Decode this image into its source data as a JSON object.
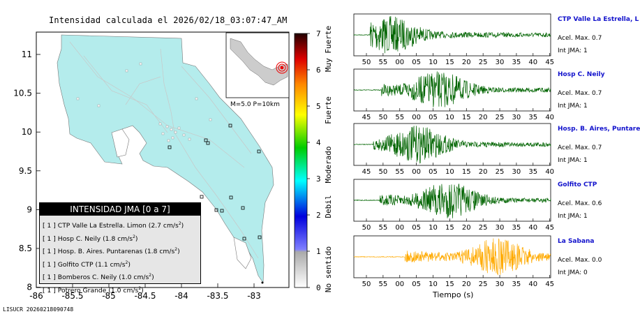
{
  "title": "Intensidad calculada el 2026/02/18_03:07:47_AM",
  "footer": "LISUCR 20260218090748",
  "map": {
    "x_ticks": [
      "-86",
      "-85.5",
      "-85",
      "-84.5",
      "-84",
      "-83.5",
      "-83"
    ],
    "y_ticks": [
      "11",
      "10.5",
      "10",
      "9.5",
      "9",
      "8.5",
      "8"
    ],
    "inset_label": "M=5.0 P=10km"
  },
  "colorbar": {
    "ticks": [
      "0",
      "1",
      "2",
      "3",
      "4",
      "5",
      "6",
      "7"
    ],
    "labels": [
      "No sentido",
      "Debil",
      "Moderado",
      "Fuerte",
      "Muy Fuerte"
    ]
  },
  "legend": {
    "title": "INTENSIDAD JMA [0 a 7]",
    "rows": [
      {
        "level": "[ 1 ]",
        "text": "CTP Valle La Estrella. Limon (2.7 cm/s",
        "sup": "2",
        ")": ")"
      },
      {
        "level": "[ 1 ]",
        "text": "Hosp C. Neily (1.8 cm/s",
        "sup": "2",
        ")": ")"
      },
      {
        "level": "[ 1 ]",
        "text": "Hosp. B. Aires. Puntarenas (1.8 cm/s",
        "sup": "2",
        ")": ")"
      },
      {
        "level": "[ 1 ]",
        "text": "Golfito CTP (1.1 cm/s",
        "sup": "2",
        ")": ")"
      },
      {
        "level": "[ 1 ]",
        "text": "Bomberos C. Neily (1.0 cm/s",
        "sup": "2",
        ")": ")"
      },
      {
        "level": "[ 1 ]",
        "text": "Potrero Grande (1.0 cm/s",
        "sup": "2",
        ")": ")"
      }
    ]
  },
  "chart_data": {
    "type": "line",
    "xlabel": "Tiempo (s)",
    "series": [
      {
        "name": "CTP Valle La Estrella, L",
        "acel": "Acel. Max. 0.7",
        "int": "Int JMA: 1",
        "color": "#006400",
        "onset": 0.08,
        "peak": 0.18,
        "amp": 1.0,
        "ticks": [
          "50",
          "55",
          "00",
          "05",
          "10",
          "15",
          "20",
          "25",
          "30",
          "35",
          "40",
          "45"
        ]
      },
      {
        "name": "Hosp C. Neily",
        "acel": "Acel. Max. 0.7",
        "int": "Int JMA: 1",
        "color": "#006400",
        "onset": 0.14,
        "peak": 0.43,
        "amp": 1.0,
        "ticks": [
          "45",
          "50",
          "55",
          "00",
          "05",
          "10",
          "15",
          "20",
          "25",
          "30",
          "35",
          "40"
        ]
      },
      {
        "name": "Hosp. B. Aires, Puntare",
        "acel": "Acel. Max. 0.7",
        "int": "Int JMA: 1",
        "color": "#006400",
        "onset": 0.1,
        "peak": 0.32,
        "amp": 1.0,
        "ticks": [
          "45",
          "50",
          "55",
          "00",
          "05",
          "10",
          "15",
          "20",
          "25",
          "30",
          "35",
          "40"
        ]
      },
      {
        "name": "Golfito CTP",
        "acel": "Acel. Max. 0.6",
        "int": "Int JMA: 1",
        "color": "#006400",
        "onset": 0.13,
        "peak": 0.48,
        "amp": 1.0,
        "ticks": [
          "50",
          "55",
          "00",
          "05",
          "10",
          "15",
          "20",
          "25",
          "30",
          "35",
          "40",
          "45"
        ]
      },
      {
        "name": "La Sabana",
        "acel": "Acel. Max. 0.0",
        "int": "Int JMA: 0",
        "color": "#ffaa00",
        "onset": 0.26,
        "peak": 0.73,
        "amp": 1.0,
        "ticks": [
          "50",
          "55",
          "00",
          "05",
          "10",
          "15",
          "20",
          "25",
          "30",
          "35",
          "40",
          "45"
        ]
      }
    ]
  }
}
